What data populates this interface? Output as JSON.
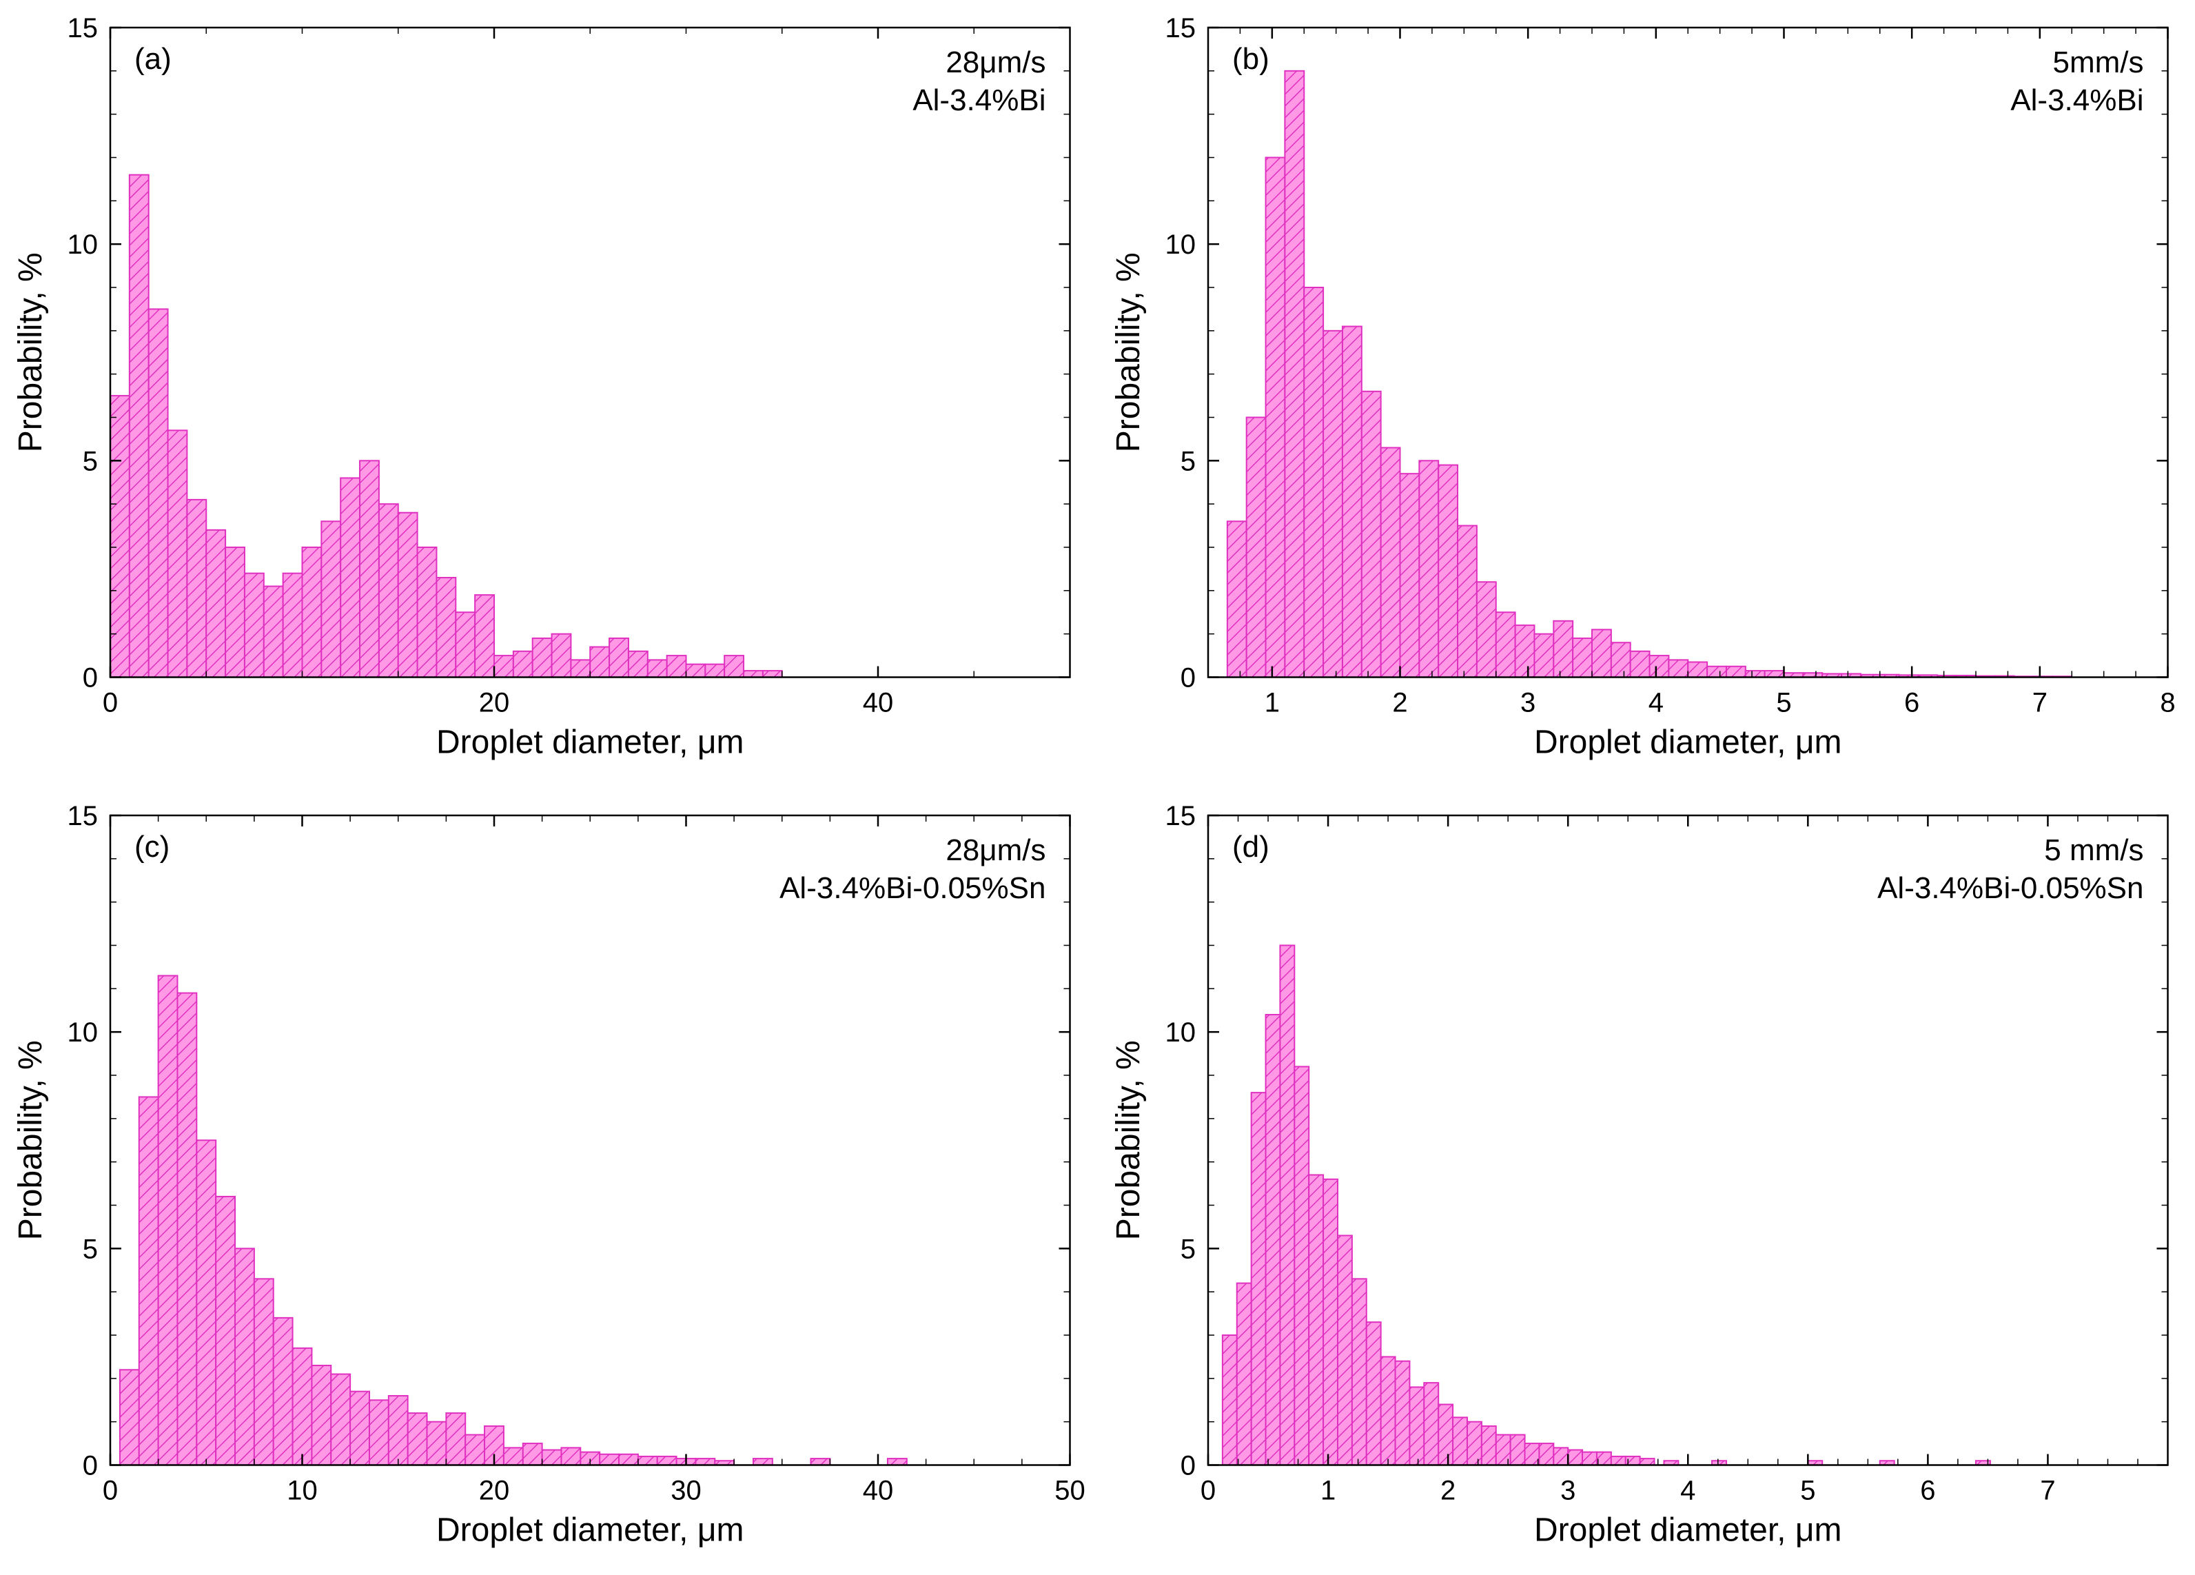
{
  "global": {
    "bar_fill": "#ff99e6",
    "bar_stroke": "#e030c0",
    "axis_stroke": "#000000",
    "axis_stroke_width": 2.5,
    "bar_stroke_width": 2,
    "panel_bg": "#ffffff",
    "label_font_family": "Arial, Helvetica, sans-serif",
    "tick_font_size": 40,
    "axis_font_size": 48,
    "anno_font_size": 44
  },
  "panels": [
    {
      "id": "a",
      "tag": "(a)",
      "line1": "28μm/s",
      "line2": "Al-3.4%Bi",
      "xlabel": "Droplet diameter, μm",
      "ylabel": "Probability, %",
      "xlim": [
        0,
        50
      ],
      "ylim": [
        0,
        15
      ],
      "xticks": [
        0,
        20,
        40
      ],
      "yticks": [
        0,
        5,
        10,
        15
      ],
      "x_minor_every": 5,
      "y_minor_every": 1,
      "bin_width": 1,
      "bars": [
        {
          "x": 0,
          "y": 6.5
        },
        {
          "x": 1,
          "y": 11.6
        },
        {
          "x": 2,
          "y": 8.5
        },
        {
          "x": 3,
          "y": 5.7
        },
        {
          "x": 4,
          "y": 4.1
        },
        {
          "x": 5,
          "y": 3.4
        },
        {
          "x": 6,
          "y": 3.0
        },
        {
          "x": 7,
          "y": 2.4
        },
        {
          "x": 8,
          "y": 2.1
        },
        {
          "x": 9,
          "y": 2.4
        },
        {
          "x": 10,
          "y": 3.0
        },
        {
          "x": 11,
          "y": 3.6
        },
        {
          "x": 12,
          "y": 4.6
        },
        {
          "x": 13,
          "y": 5.0
        },
        {
          "x": 14,
          "y": 4.0
        },
        {
          "x": 15,
          "y": 3.8
        },
        {
          "x": 16,
          "y": 3.0
        },
        {
          "x": 17,
          "y": 2.3
        },
        {
          "x": 18,
          "y": 1.5
        },
        {
          "x": 19,
          "y": 1.9
        },
        {
          "x": 20,
          "y": 0.5
        },
        {
          "x": 21,
          "y": 0.6
        },
        {
          "x": 22,
          "y": 0.9
        },
        {
          "x": 23,
          "y": 1.0
        },
        {
          "x": 24,
          "y": 0.4
        },
        {
          "x": 25,
          "y": 0.7
        },
        {
          "x": 26,
          "y": 0.9
        },
        {
          "x": 27,
          "y": 0.6
        },
        {
          "x": 28,
          "y": 0.4
        },
        {
          "x": 29,
          "y": 0.5
        },
        {
          "x": 30,
          "y": 0.3
        },
        {
          "x": 31,
          "y": 0.3
        },
        {
          "x": 32,
          "y": 0.5
        },
        {
          "x": 33,
          "y": 0.15
        },
        {
          "x": 34,
          "y": 0.15
        }
      ]
    },
    {
      "id": "b",
      "tag": "(b)",
      "line1": "5mm/s",
      "line2": "Al-3.4%Bi",
      "xlabel": "Droplet diameter, μm",
      "ylabel": "Probability, %",
      "xlim": [
        0.5,
        8
      ],
      "ylim": [
        0,
        15
      ],
      "xticks": [
        1,
        2,
        3,
        4,
        5,
        6,
        7,
        8
      ],
      "yticks": [
        0,
        5,
        10,
        15
      ],
      "x_minor_every": 0.25,
      "y_minor_every": 1,
      "bin_width": 0.15,
      "bars": [
        {
          "x": 0.65,
          "y": 3.6
        },
        {
          "x": 0.8,
          "y": 6.0
        },
        {
          "x": 0.95,
          "y": 12.0
        },
        {
          "x": 1.1,
          "y": 14.0
        },
        {
          "x": 1.25,
          "y": 9.0
        },
        {
          "x": 1.4,
          "y": 8.0
        },
        {
          "x": 1.55,
          "y": 8.1
        },
        {
          "x": 1.7,
          "y": 6.6
        },
        {
          "x": 1.85,
          "y": 5.3
        },
        {
          "x": 2.0,
          "y": 4.7
        },
        {
          "x": 2.15,
          "y": 5.0
        },
        {
          "x": 2.3,
          "y": 4.9
        },
        {
          "x": 2.45,
          "y": 3.5
        },
        {
          "x": 2.6,
          "y": 2.2
        },
        {
          "x": 2.75,
          "y": 1.5
        },
        {
          "x": 2.9,
          "y": 1.2
        },
        {
          "x": 3.05,
          "y": 1.0
        },
        {
          "x": 3.2,
          "y": 1.3
        },
        {
          "x": 3.35,
          "y": 0.9
        },
        {
          "x": 3.5,
          "y": 1.1
        },
        {
          "x": 3.65,
          "y": 0.8
        },
        {
          "x": 3.8,
          "y": 0.6
        },
        {
          "x": 3.95,
          "y": 0.5
        },
        {
          "x": 4.1,
          "y": 0.4
        },
        {
          "x": 4.25,
          "y": 0.35
        },
        {
          "x": 4.4,
          "y": 0.25
        },
        {
          "x": 4.55,
          "y": 0.25
        },
        {
          "x": 4.7,
          "y": 0.15
        },
        {
          "x": 4.85,
          "y": 0.15
        },
        {
          "x": 5.0,
          "y": 0.1
        },
        {
          "x": 5.15,
          "y": 0.1
        },
        {
          "x": 5.3,
          "y": 0.08
        },
        {
          "x": 5.45,
          "y": 0.08
        },
        {
          "x": 5.6,
          "y": 0.06
        },
        {
          "x": 5.75,
          "y": 0.06
        },
        {
          "x": 5.9,
          "y": 0.05
        },
        {
          "x": 6.05,
          "y": 0.05
        },
        {
          "x": 6.2,
          "y": 0.04
        },
        {
          "x": 6.35,
          "y": 0.04
        },
        {
          "x": 6.5,
          "y": 0.03
        },
        {
          "x": 6.65,
          "y": 0.03
        },
        {
          "x": 6.8,
          "y": 0.02
        },
        {
          "x": 6.95,
          "y": 0.02
        },
        {
          "x": 7.1,
          "y": 0.02
        }
      ]
    },
    {
      "id": "c",
      "tag": "(c)",
      "line1": "28μm/s",
      "line2": "Al-3.4%Bi-0.05%Sn",
      "xlabel": "Droplet diameter, μm",
      "ylabel": "Probability, %",
      "xlim": [
        0,
        50
      ],
      "ylim": [
        0,
        15
      ],
      "xticks": [
        0,
        10,
        20,
        30,
        40,
        50
      ],
      "yticks": [
        0,
        5,
        10,
        15
      ],
      "x_minor_every": 2.5,
      "y_minor_every": 1,
      "bin_width": 1,
      "bars": [
        {
          "x": 0.5,
          "y": 2.2
        },
        {
          "x": 1.5,
          "y": 8.5
        },
        {
          "x": 2.5,
          "y": 11.3
        },
        {
          "x": 3.5,
          "y": 10.9
        },
        {
          "x": 4.5,
          "y": 7.5
        },
        {
          "x": 5.5,
          "y": 6.2
        },
        {
          "x": 6.5,
          "y": 5.0
        },
        {
          "x": 7.5,
          "y": 4.3
        },
        {
          "x": 8.5,
          "y": 3.4
        },
        {
          "x": 9.5,
          "y": 2.7
        },
        {
          "x": 10.5,
          "y": 2.3
        },
        {
          "x": 11.5,
          "y": 2.1
        },
        {
          "x": 12.5,
          "y": 1.7
        },
        {
          "x": 13.5,
          "y": 1.5
        },
        {
          "x": 14.5,
          "y": 1.6
        },
        {
          "x": 15.5,
          "y": 1.2
        },
        {
          "x": 16.5,
          "y": 1.0
        },
        {
          "x": 17.5,
          "y": 1.2
        },
        {
          "x": 18.5,
          "y": 0.7
        },
        {
          "x": 19.5,
          "y": 0.9
        },
        {
          "x": 20.5,
          "y": 0.4
        },
        {
          "x": 21.5,
          "y": 0.5
        },
        {
          "x": 22.5,
          "y": 0.35
        },
        {
          "x": 23.5,
          "y": 0.4
        },
        {
          "x": 24.5,
          "y": 0.3
        },
        {
          "x": 25.5,
          "y": 0.25
        },
        {
          "x": 26.5,
          "y": 0.25
        },
        {
          "x": 27.5,
          "y": 0.2
        },
        {
          "x": 28.5,
          "y": 0.2
        },
        {
          "x": 29.5,
          "y": 0.15
        },
        {
          "x": 30.5,
          "y": 0.15
        },
        {
          "x": 31.5,
          "y": 0.1
        },
        {
          "x": 33.5,
          "y": 0.15
        },
        {
          "x": 36.5,
          "y": 0.15
        },
        {
          "x": 40.5,
          "y": 0.15
        }
      ]
    },
    {
      "id": "d",
      "tag": "(d)",
      "line1": "5 mm/s",
      "line2": "Al-3.4%Bi-0.05%Sn",
      "xlabel": "Droplet diameter, μm",
      "ylabel": "Probability, %",
      "xlim": [
        0,
        8
      ],
      "ylim": [
        0,
        15
      ],
      "xticks": [
        0,
        1,
        2,
        3,
        4,
        5,
        6,
        7
      ],
      "yticks": [
        0,
        5,
        10,
        15
      ],
      "x_minor_every": 0.25,
      "y_minor_every": 1,
      "bin_width": 0.12,
      "bars": [
        {
          "x": 0.12,
          "y": 3.0
        },
        {
          "x": 0.24,
          "y": 4.2
        },
        {
          "x": 0.36,
          "y": 8.6
        },
        {
          "x": 0.48,
          "y": 10.4
        },
        {
          "x": 0.6,
          "y": 12.0
        },
        {
          "x": 0.72,
          "y": 9.2
        },
        {
          "x": 0.84,
          "y": 6.7
        },
        {
          "x": 0.96,
          "y": 6.6
        },
        {
          "x": 1.08,
          "y": 5.3
        },
        {
          "x": 1.2,
          "y": 4.3
        },
        {
          "x": 1.32,
          "y": 3.3
        },
        {
          "x": 1.44,
          "y": 2.5
        },
        {
          "x": 1.56,
          "y": 2.4
        },
        {
          "x": 1.68,
          "y": 1.8
        },
        {
          "x": 1.8,
          "y": 1.9
        },
        {
          "x": 1.92,
          "y": 1.4
        },
        {
          "x": 2.04,
          "y": 1.1
        },
        {
          "x": 2.16,
          "y": 1.0
        },
        {
          "x": 2.28,
          "y": 0.9
        },
        {
          "x": 2.4,
          "y": 0.7
        },
        {
          "x": 2.52,
          "y": 0.7
        },
        {
          "x": 2.64,
          "y": 0.5
        },
        {
          "x": 2.76,
          "y": 0.5
        },
        {
          "x": 2.88,
          "y": 0.4
        },
        {
          "x": 3.0,
          "y": 0.35
        },
        {
          "x": 3.12,
          "y": 0.3
        },
        {
          "x": 3.24,
          "y": 0.3
        },
        {
          "x": 3.36,
          "y": 0.2
        },
        {
          "x": 3.48,
          "y": 0.2
        },
        {
          "x": 3.6,
          "y": 0.15
        },
        {
          "x": 3.8,
          "y": 0.1
        },
        {
          "x": 4.2,
          "y": 0.1
        },
        {
          "x": 5.0,
          "y": 0.1
        },
        {
          "x": 5.6,
          "y": 0.1
        },
        {
          "x": 6.4,
          "y": 0.1
        }
      ]
    }
  ]
}
